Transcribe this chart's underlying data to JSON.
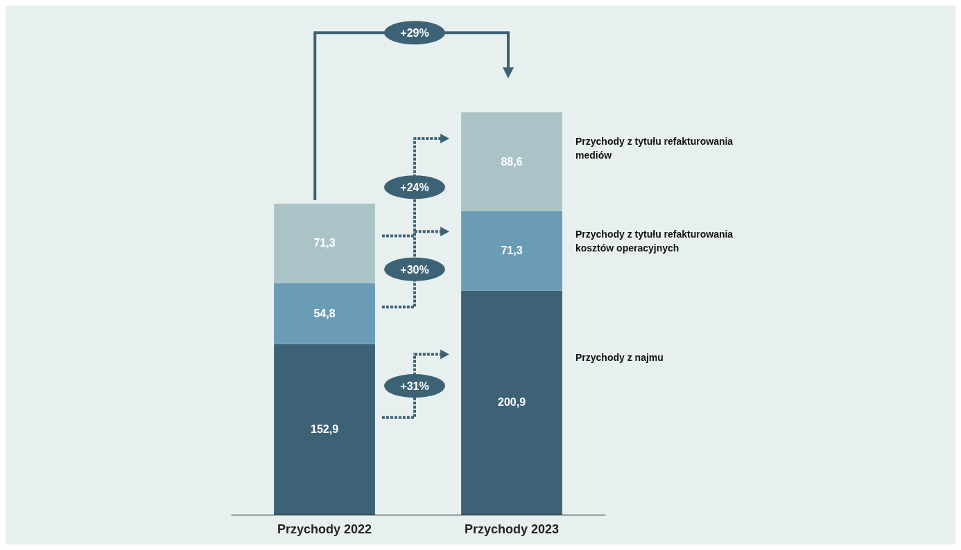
{
  "chart_data": {
    "type": "bar",
    "stacked": true,
    "legend": false,
    "categories": [
      "Przychody 2022",
      "Przychody 2023"
    ],
    "series": [
      {
        "name": "Przychody z najmu",
        "color": "#3e6275",
        "values": [
          152.9,
          200.9
        ],
        "value_labels": [
          "152,9",
          "200,9"
        ]
      },
      {
        "name": "Przychody z tytułu refakturowania kosztów operacyjnych",
        "color": "#6a9db5",
        "values": [
          54.8,
          71.3
        ],
        "value_labels": [
          "54,8",
          "71,3"
        ]
      },
      {
        "name": "Przychody z tytułu refakturowania mediów",
        "color": "#aac3c6",
        "values": [
          71.3,
          88.6
        ],
        "value_labels": [
          "71,3",
          "88,6"
        ]
      }
    ],
    "annotations": [
      "+29%",
      "+31%",
      "+30%",
      "+24%"
    ]
  }
}
